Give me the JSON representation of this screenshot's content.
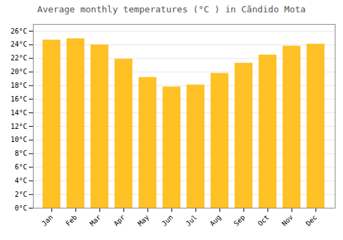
{
  "chart_data": {
    "type": "bar",
    "title": "Average monthly temperatures (°C ) in Cãndido Mota",
    "categories": [
      "Jan",
      "Feb",
      "Mar",
      "Apr",
      "May",
      "Jun",
      "Jul",
      "Aug",
      "Sep",
      "Oct",
      "Nov",
      "Dec"
    ],
    "values": [
      24.7,
      24.9,
      24.0,
      21.9,
      19.2,
      17.8,
      18.1,
      19.8,
      21.3,
      22.5,
      23.8,
      24.1
    ],
    "color": "#FFC125",
    "ylim": [
      0,
      27
    ],
    "yticks": [
      {
        "value": 0,
        "label": "0°C"
      },
      {
        "value": 2,
        "label": "2°C"
      },
      {
        "value": 4,
        "label": "4°C"
      },
      {
        "value": 6,
        "label": "6°C"
      },
      {
        "value": 8,
        "label": "8°C"
      },
      {
        "value": 10,
        "label": "10°C"
      },
      {
        "value": 12,
        "label": "12°C"
      },
      {
        "value": 14,
        "label": "14°C"
      },
      {
        "value": 16,
        "label": "16°C"
      },
      {
        "value": 18,
        "label": "18°C"
      },
      {
        "value": 20,
        "label": "20°C"
      },
      {
        "value": 22,
        "label": "22°C"
      },
      {
        "value": 24,
        "label": "24°C"
      },
      {
        "value": 26,
        "label": "26°C"
      }
    ],
    "grid": true
  }
}
